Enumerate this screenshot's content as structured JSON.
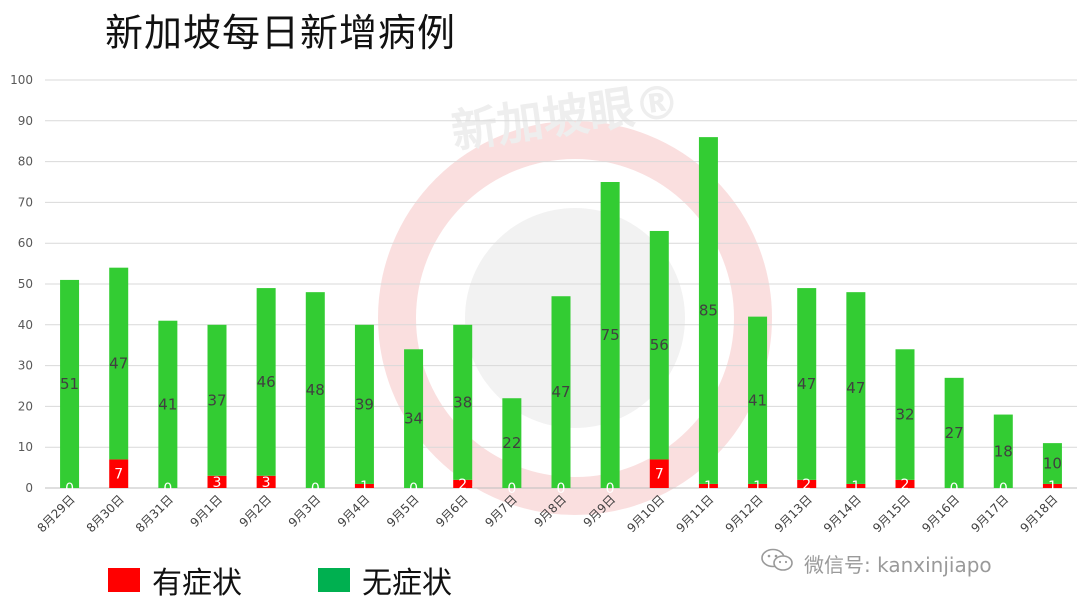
{
  "title": "新加坡每日新增病例",
  "watermark": {
    "logo_text": "新加坡眼®",
    "wechat_text": "微信号: kanxinjiapo"
  },
  "colors": {
    "symptomatic": "#ff0000",
    "asymptomatic": "#33cc33",
    "legend_asymptomatic": "#00b050",
    "grid": "#d9d9d9"
  },
  "legend": [
    {
      "label": "有症状",
      "color": "#ff0000"
    },
    {
      "label": "无症状",
      "color": "#00b050"
    }
  ],
  "chart_data": {
    "type": "bar",
    "stacked": true,
    "title": "新加坡每日新增病例",
    "categories": [
      "8月29日",
      "8月30日",
      "8月31日",
      "9月1日",
      "9月2日",
      "9月3日",
      "9月4日",
      "9月5日",
      "9月6日",
      "9月7日",
      "9月8日",
      "9月9日",
      "9月10日",
      "9月11日",
      "9月12日",
      "9月13日",
      "9月14日",
      "9月15日",
      "9月16日",
      "9月17日",
      "9月18日"
    ],
    "series": [
      {
        "name": "有症状",
        "values": [
          0,
          7,
          0,
          3,
          3,
          0,
          1,
          0,
          2,
          0,
          0,
          0,
          7,
          1,
          1,
          2,
          1,
          2,
          0,
          0,
          1
        ]
      },
      {
        "name": "无症状",
        "values": [
          51,
          47,
          41,
          37,
          46,
          48,
          39,
          34,
          38,
          22,
          47,
          75,
          56,
          85,
          41,
          47,
          47,
          32,
          27,
          18,
          10
        ]
      }
    ],
    "ylim": [
      0,
      100
    ],
    "yticks": [
      0,
      10,
      20,
      30,
      40,
      50,
      60,
      70,
      80,
      90,
      100
    ],
    "grid": true,
    "legend_position": "bottom-left"
  }
}
